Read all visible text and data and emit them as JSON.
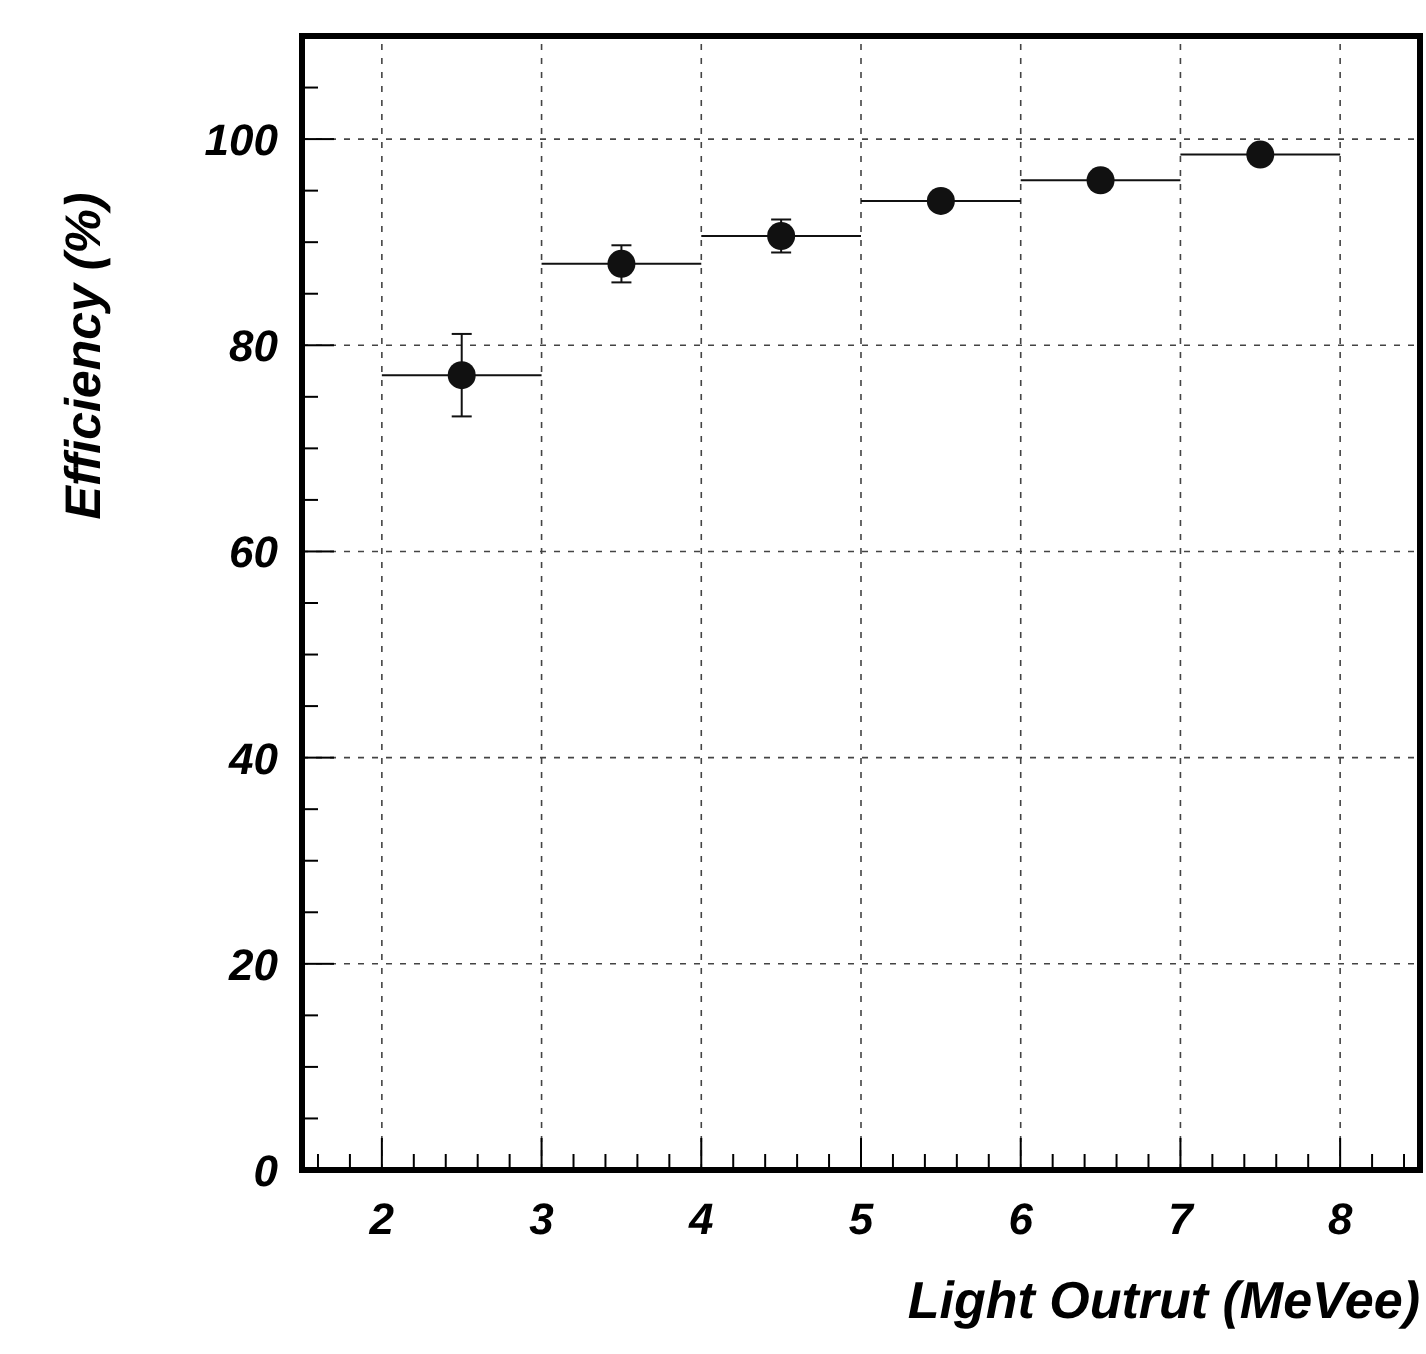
{
  "chart_data": {
    "type": "scatter",
    "xlabel": "Light Outrut (MeVee)",
    "ylabel": "Efficiency (%)",
    "x": [
      2.5,
      3.5,
      4.5,
      5.5,
      6.5,
      7.5
    ],
    "values": [
      77.1,
      87.9,
      90.6,
      94.0,
      96.0,
      98.5
    ],
    "errors": [
      4,
      1.8,
      1.6,
      0.5,
      0.5,
      0.5
    ],
    "xerrors": [
      0.5,
      0.5,
      0.5,
      0.5,
      0.5,
      0.5
    ],
    "color": "#111111",
    "marker": "circle",
    "grid": true,
    "xlim": [
      1.5,
      8.5
    ],
    "ylim": [
      0,
      110
    ],
    "xticks": [
      {
        "value": 1.6,
        "label": null
      },
      {
        "value": 1.8,
        "label": null
      },
      2,
      {
        "value": 2.2,
        "label": null
      },
      {
        "value": 2.4,
        "label": null
      },
      {
        "value": 2.6,
        "label": null
      },
      {
        "value": 2.8,
        "label": null
      },
      3,
      {
        "value": 3.2,
        "label": null
      },
      {
        "value": 3.4,
        "label": null
      },
      {
        "value": 3.6,
        "label": null
      },
      {
        "value": 3.8,
        "label": null
      },
      4,
      {
        "value": 4.2,
        "label": null
      },
      {
        "value": 4.4,
        "label": null
      },
      {
        "value": 4.6,
        "label": null
      },
      {
        "value": 4.8,
        "label": null
      },
      5,
      {
        "value": 5.2,
        "label": null
      },
      {
        "value": 5.4,
        "label": null
      },
      {
        "value": 5.6,
        "label": null
      },
      {
        "value": 5.8,
        "label": null
      },
      6,
      {
        "value": 6.2,
        "label": null
      },
      {
        "value": 6.4,
        "label": null
      },
      {
        "value": 6.6,
        "label": null
      },
      {
        "value": 6.8,
        "label": null
      },
      7,
      {
        "value": 7.2,
        "label": null
      },
      {
        "value": 7.4,
        "label": null
      },
      {
        "value": 7.6,
        "label": null
      },
      {
        "value": 7.8,
        "label": null
      },
      8,
      {
        "value": 8.2,
        "label": null
      },
      {
        "value": 8.4,
        "label": null
      }
    ],
    "yticks": [
      0,
      {
        "value": 5,
        "label": null
      },
      {
        "value": 10,
        "label": null
      },
      {
        "value": 15,
        "label": null
      },
      20,
      {
        "value": 25,
        "label": null
      },
      {
        "value": 30,
        "label": null
      },
      {
        "value": 35,
        "label": null
      },
      40,
      {
        "value": 45,
        "label": null
      },
      {
        "value": 50,
        "label": null
      },
      {
        "value": 55,
        "label": null
      },
      60,
      {
        "value": 65,
        "label": null
      },
      {
        "value": 70,
        "label": null
      },
      {
        "value": 75,
        "label": null
      },
      80,
      {
        "value": 85,
        "label": null
      },
      {
        "value": 90,
        "label": null
      },
      {
        "value": 95,
        "label": null
      },
      100,
      {
        "value": 105,
        "label": null
      }
    ]
  }
}
